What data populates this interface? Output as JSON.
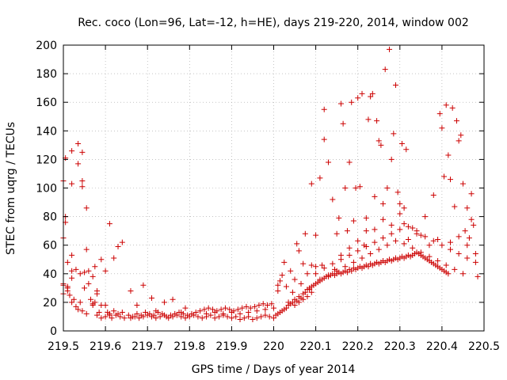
{
  "chart_data": {
    "type": "scatter",
    "title": "Rec. coco (Lon=96, Lat=-12, h=HE), days 219-220, 2014, window 002",
    "xlabel": "GPS time / Days of year 2014",
    "ylabel": "STEC from uqrg / TECUs",
    "xlim": [
      219.5,
      220.5
    ],
    "ylim": [
      0,
      200
    ],
    "x_ticks": [
      219.5,
      219.6,
      219.7,
      219.8,
      219.9,
      220,
      220.1,
      220.2,
      220.3,
      220.4,
      220.5
    ],
    "x_tick_labels": [
      "219.5",
      "219.6",
      "219.7",
      "219.8",
      "219.9",
      "220",
      "220.1",
      "220.2",
      "220.3",
      "220.4",
      "220.5"
    ],
    "y_ticks": [
      0,
      20,
      40,
      60,
      80,
      100,
      120,
      140,
      160,
      180,
      200
    ],
    "y_tick_labels": [
      "0",
      "20",
      "40",
      "60",
      "80",
      "100",
      "120",
      "140",
      "160",
      "180",
      "200"
    ],
    "grid": true,
    "marker": "+",
    "color": "#cc0000",
    "points": [
      [
        219.5,
        105
      ],
      [
        219.5,
        65
      ],
      [
        219.505,
        121
      ],
      [
        219.505,
        80
      ],
      [
        219.505,
        76
      ],
      [
        219.51,
        48
      ],
      [
        219.51,
        28
      ],
      [
        219.5,
        33
      ],
      [
        219.5,
        26
      ],
      [
        219.52,
        53
      ],
      [
        219.52,
        42
      ],
      [
        219.52,
        103
      ],
      [
        219.52,
        126
      ],
      [
        219.535,
        131
      ],
      [
        219.535,
        117
      ],
      [
        219.545,
        125
      ],
      [
        219.545,
        105
      ],
      [
        219.545,
        101
      ],
      [
        219.555,
        86
      ],
      [
        219.555,
        57
      ],
      [
        219.53,
        43
      ],
      [
        219.54,
        40
      ],
      [
        219.55,
        41
      ],
      [
        219.56,
        42
      ],
      [
        219.57,
        38
      ],
      [
        219.575,
        45
      ],
      [
        219.58,
        28
      ],
      [
        219.59,
        50
      ],
      [
        219.6,
        42
      ],
      [
        219.61,
        75
      ],
      [
        219.62,
        51
      ],
      [
        219.63,
        59
      ],
      [
        219.64,
        62
      ],
      [
        219.51,
        30
      ],
      [
        219.515,
        25
      ],
      [
        219.52,
        20
      ],
      [
        219.525,
        22
      ],
      [
        219.53,
        17
      ],
      [
        219.535,
        15
      ],
      [
        219.54,
        20
      ],
      [
        219.545,
        14
      ],
      [
        219.55,
        30
      ],
      [
        219.555,
        12
      ],
      [
        219.56,
        33
      ],
      [
        219.565,
        22
      ],
      [
        219.57,
        19
      ],
      [
        219.575,
        20
      ],
      [
        219.58,
        26
      ],
      [
        219.585,
        13
      ],
      [
        219.59,
        18
      ],
      [
        219.6,
        18
      ],
      [
        219.605,
        13
      ],
      [
        219.61,
        11
      ],
      [
        219.62,
        14
      ],
      [
        219.63,
        12
      ],
      [
        219.64,
        13
      ],
      [
        219.66,
        28
      ],
      [
        219.675,
        18
      ],
      [
        219.69,
        32
      ],
      [
        219.71,
        23
      ],
      [
        219.72,
        14
      ],
      [
        219.74,
        20
      ],
      [
        219.76,
        22
      ],
      [
        219.78,
        13
      ],
      [
        219.79,
        16
      ],
      [
        219.5,
        32
      ],
      [
        219.51,
        31
      ],
      [
        219.52,
        37
      ],
      [
        219.57,
        18
      ],
      [
        219.58,
        11
      ],
      [
        219.59,
        9
      ],
      [
        219.6,
        10
      ],
      [
        219.61,
        12
      ],
      [
        219.615,
        9
      ],
      [
        219.625,
        11
      ],
      [
        219.635,
        10
      ],
      [
        219.645,
        9
      ],
      [
        219.655,
        11
      ],
      [
        219.665,
        10
      ],
      [
        219.675,
        12
      ],
      [
        219.685,
        11
      ],
      [
        219.695,
        13
      ],
      [
        219.705,
        12
      ],
      [
        219.715,
        11
      ],
      [
        219.725,
        13
      ],
      [
        219.735,
        12
      ],
      [
        219.745,
        10
      ],
      [
        219.755,
        11
      ],
      [
        219.765,
        12
      ],
      [
        219.775,
        13
      ],
      [
        219.785,
        12
      ],
      [
        219.795,
        11
      ],
      [
        219.805,
        12
      ],
      [
        219.815,
        13
      ],
      [
        219.825,
        14
      ],
      [
        219.835,
        15
      ],
      [
        219.845,
        16
      ],
      [
        219.855,
        15
      ],
      [
        219.865,
        14
      ],
      [
        219.875,
        15
      ],
      [
        219.885,
        16
      ],
      [
        219.895,
        15
      ],
      [
        219.905,
        14
      ],
      [
        219.915,
        15
      ],
      [
        219.925,
        16
      ],
      [
        219.935,
        17
      ],
      [
        219.945,
        16
      ],
      [
        219.955,
        17
      ],
      [
        219.965,
        18
      ],
      [
        219.975,
        19
      ],
      [
        219.985,
        18
      ],
      [
        219.995,
        19
      ],
      [
        219.66,
        9
      ],
      [
        219.67,
        10
      ],
      [
        219.68,
        9
      ],
      [
        219.69,
        10
      ],
      [
        219.7,
        11
      ],
      [
        219.71,
        10
      ],
      [
        219.72,
        9
      ],
      [
        219.73,
        10
      ],
      [
        219.74,
        11
      ],
      [
        219.75,
        9
      ],
      [
        219.76,
        10
      ],
      [
        219.77,
        11
      ],
      [
        219.78,
        10
      ],
      [
        219.79,
        9
      ],
      [
        219.8,
        10
      ],
      [
        219.81,
        11
      ],
      [
        219.82,
        10
      ],
      [
        219.83,
        9
      ],
      [
        219.84,
        10
      ],
      [
        219.85,
        11
      ],
      [
        219.86,
        9
      ],
      [
        219.87,
        10
      ],
      [
        219.88,
        11
      ],
      [
        219.89,
        10
      ],
      [
        219.9,
        9
      ],
      [
        219.91,
        10
      ],
      [
        219.92,
        8
      ],
      [
        219.93,
        9
      ],
      [
        219.94,
        10
      ],
      [
        219.95,
        8
      ],
      [
        219.96,
        9
      ],
      [
        219.97,
        10
      ],
      [
        219.98,
        11
      ],
      [
        219.99,
        10
      ],
      [
        219.84,
        12
      ],
      [
        219.86,
        13
      ],
      [
        219.88,
        12
      ],
      [
        219.9,
        13
      ],
      [
        219.92,
        12
      ],
      [
        219.94,
        13
      ],
      [
        219.96,
        14
      ],
      [
        219.98,
        15
      ],
      [
        220.0,
        16
      ],
      [
        220.01,
        28
      ],
      [
        220.01,
        32
      ],
      [
        220.015,
        35
      ],
      [
        220.02,
        39
      ],
      [
        220.025,
        48
      ],
      [
        220.03,
        31
      ],
      [
        220.035,
        20
      ],
      [
        220.04,
        42
      ],
      [
        220.045,
        27
      ],
      [
        220.05,
        36
      ],
      [
        220.055,
        61
      ],
      [
        220.06,
        56
      ],
      [
        220.065,
        33
      ],
      [
        220.07,
        47
      ],
      [
        220.075,
        68
      ],
      [
        220.08,
        40
      ],
      [
        220.085,
        29
      ],
      [
        220.09,
        103
      ],
      [
        220.09,
        46
      ],
      [
        220.1,
        45
      ],
      [
        220.1,
        67
      ],
      [
        220.11,
        107
      ],
      [
        220.115,
        46
      ],
      [
        220.12,
        155
      ],
      [
        220.12,
        134
      ],
      [
        220.13,
        118
      ],
      [
        220.14,
        92
      ],
      [
        220.145,
        43
      ],
      [
        220.15,
        68
      ],
      [
        220.155,
        79
      ],
      [
        220.16,
        159
      ],
      [
        220.165,
        145
      ],
      [
        220.17,
        100
      ],
      [
        220.175,
        70
      ],
      [
        220.18,
        118
      ],
      [
        220.185,
        160
      ],
      [
        220.19,
        77
      ],
      [
        220.195,
        100
      ],
      [
        220.2,
        163
      ],
      [
        220.205,
        101
      ],
      [
        220.21,
        166
      ],
      [
        220.215,
        60
      ],
      [
        220.22,
        79
      ],
      [
        220.225,
        148
      ],
      [
        220.23,
        164
      ],
      [
        220.235,
        166
      ],
      [
        220.24,
        94
      ],
      [
        220.245,
        147
      ],
      [
        220.25,
        133
      ],
      [
        220.255,
        130
      ],
      [
        220.26,
        89
      ],
      [
        220.265,
        183
      ],
      [
        220.27,
        100
      ],
      [
        220.275,
        197
      ],
      [
        220.28,
        120
      ],
      [
        220.285,
        138
      ],
      [
        220.29,
        172
      ],
      [
        220.295,
        97
      ],
      [
        220.3,
        89
      ],
      [
        220.305,
        131
      ],
      [
        220.31,
        75
      ],
      [
        220.315,
        127
      ],
      [
        220.32,
        64
      ],
      [
        220.33,
        72
      ],
      [
        220.34,
        68
      ],
      [
        220.35,
        67
      ],
      [
        220.36,
        80
      ],
      [
        220.37,
        60
      ],
      [
        220.38,
        95
      ],
      [
        220.39,
        64
      ],
      [
        220.395,
        152
      ],
      [
        220.4,
        142
      ],
      [
        220.405,
        108
      ],
      [
        220.41,
        158
      ],
      [
        220.415,
        123
      ],
      [
        220.42,
        106
      ],
      [
        220.425,
        156
      ],
      [
        220.43,
        87
      ],
      [
        220.435,
        147
      ],
      [
        220.44,
        133
      ],
      [
        220.445,
        137
      ],
      [
        220.45,
        103
      ],
      [
        220.455,
        70
      ],
      [
        220.46,
        86
      ],
      [
        220.465,
        65
      ],
      [
        220.47,
        96
      ],
      [
        220.475,
        74
      ],
      [
        220.48,
        54
      ],
      [
        220.485,
        38
      ],
      [
        220.0,
        9
      ],
      [
        220.005,
        11
      ],
      [
        220.01,
        12
      ],
      [
        220.015,
        13
      ],
      [
        220.02,
        14
      ],
      [
        220.025,
        15
      ],
      [
        220.03,
        16
      ],
      [
        220.035,
        18
      ],
      [
        220.04,
        19
      ],
      [
        220.045,
        20
      ],
      [
        220.05,
        22
      ],
      [
        220.055,
        21
      ],
      [
        220.06,
        24
      ],
      [
        220.065,
        23
      ],
      [
        220.07,
        26
      ],
      [
        220.075,
        27
      ],
      [
        220.08,
        29
      ],
      [
        220.085,
        30
      ],
      [
        220.09,
        31
      ],
      [
        220.095,
        32
      ],
      [
        220.1,
        33
      ],
      [
        220.105,
        34
      ],
      [
        220.11,
        35
      ],
      [
        220.115,
        36
      ],
      [
        220.12,
        37
      ],
      [
        220.125,
        38
      ],
      [
        220.13,
        38
      ],
      [
        220.135,
        39
      ],
      [
        220.14,
        40
      ],
      [
        220.145,
        39
      ],
      [
        220.15,
        40
      ],
      [
        220.155,
        41
      ],
      [
        220.16,
        40
      ],
      [
        220.165,
        41
      ],
      [
        220.17,
        42
      ],
      [
        220.175,
        41
      ],
      [
        220.18,
        43
      ],
      [
        220.185,
        42
      ],
      [
        220.19,
        44
      ],
      [
        220.195,
        43
      ],
      [
        220.2,
        44
      ],
      [
        220.205,
        45
      ],
      [
        220.21,
        44
      ],
      [
        220.215,
        45
      ],
      [
        220.22,
        46
      ],
      [
        220.225,
        45
      ],
      [
        220.23,
        47
      ],
      [
        220.235,
        46
      ],
      [
        220.24,
        47
      ],
      [
        220.245,
        48
      ],
      [
        220.25,
        47
      ],
      [
        220.255,
        48
      ],
      [
        220.26,
        49
      ],
      [
        220.265,
        48
      ],
      [
        220.27,
        49
      ],
      [
        220.275,
        50
      ],
      [
        220.28,
        49
      ],
      [
        220.285,
        50
      ],
      [
        220.29,
        51
      ],
      [
        220.295,
        50
      ],
      [
        220.3,
        51
      ],
      [
        220.305,
        52
      ],
      [
        220.31,
        51
      ],
      [
        220.315,
        52
      ],
      [
        220.32,
        53
      ],
      [
        220.325,
        52
      ],
      [
        220.33,
        53
      ],
      [
        220.335,
        54
      ],
      [
        220.34,
        55
      ],
      [
        220.345,
        54
      ],
      [
        220.35,
        53
      ],
      [
        220.355,
        52
      ],
      [
        220.36,
        51
      ],
      [
        220.365,
        50
      ],
      [
        220.37,
        49
      ],
      [
        220.375,
        48
      ],
      [
        220.38,
        47
      ],
      [
        220.385,
        46
      ],
      [
        220.39,
        45
      ],
      [
        220.395,
        44
      ],
      [
        220.4,
        43
      ],
      [
        220.405,
        42
      ],
      [
        220.41,
        41
      ],
      [
        220.415,
        40
      ],
      [
        220.1,
        40
      ],
      [
        220.12,
        44
      ],
      [
        220.14,
        47
      ],
      [
        220.16,
        50
      ],
      [
        220.18,
        53
      ],
      [
        220.2,
        56
      ],
      [
        220.22,
        59
      ],
      [
        220.24,
        62
      ],
      [
        220.26,
        65
      ],
      [
        220.28,
        68
      ],
      [
        220.3,
        71
      ],
      [
        220.32,
        73
      ],
      [
        220.34,
        70
      ],
      [
        220.36,
        66
      ],
      [
        220.38,
        63
      ],
      [
        220.4,
        60
      ],
      [
        220.42,
        57
      ],
      [
        220.44,
        54
      ],
      [
        220.46,
        51
      ],
      [
        220.48,
        48
      ],
      [
        220.11,
        36
      ],
      [
        220.13,
        39
      ],
      [
        220.15,
        42
      ],
      [
        220.17,
        45
      ],
      [
        220.19,
        48
      ],
      [
        220.21,
        51
      ],
      [
        220.23,
        54
      ],
      [
        220.25,
        57
      ],
      [
        220.27,
        60
      ],
      [
        220.29,
        63
      ],
      [
        220.31,
        61
      ],
      [
        220.33,
        58
      ],
      [
        220.35,
        55
      ],
      [
        220.37,
        52
      ],
      [
        220.39,
        49
      ],
      [
        220.41,
        46
      ],
      [
        220.43,
        43
      ],
      [
        220.45,
        40
      ],
      [
        220.05,
        18
      ],
      [
        220.06,
        20
      ],
      [
        220.07,
        22
      ],
      [
        220.08,
        24
      ],
      [
        220.09,
        27
      ],
      [
        220.3,
        82
      ],
      [
        220.31,
        86
      ],
      [
        220.28,
        74
      ],
      [
        220.22,
        70
      ],
      [
        220.24,
        71
      ],
      [
        220.26,
        78
      ],
      [
        220.2,
        63
      ],
      [
        220.18,
        58
      ],
      [
        220.16,
        53
      ],
      [
        220.42,
        62
      ],
      [
        220.44,
        66
      ],
      [
        220.46,
        60
      ],
      [
        220.47,
        78
      ]
    ]
  }
}
